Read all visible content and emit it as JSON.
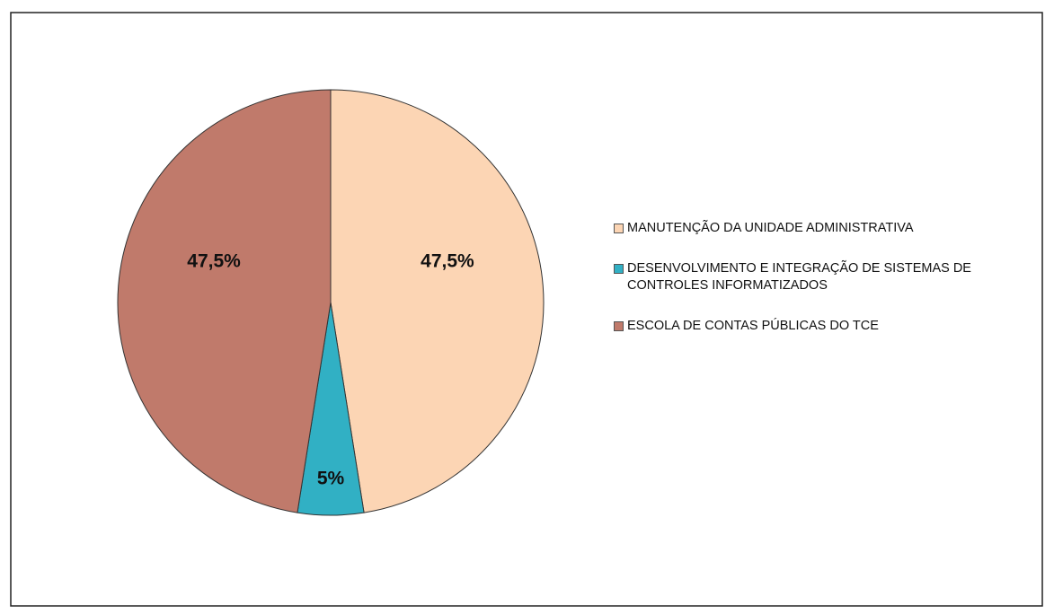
{
  "chart_data": {
    "type": "pie",
    "categories": [
      "MANUTENÇÃO DA UNIDADE ADMINISTRATIVA",
      "DESENVOLVIMENTO E INTEGRAÇÃO DE SISTEMAS DE CONTROLES INFORMATIZADOS",
      "ESCOLA DE CONTAS PÚBLICAS DO TCE"
    ],
    "values": [
      47.5,
      5,
      47.5
    ],
    "value_labels": [
      "47,5%",
      "5%",
      "47,5%"
    ],
    "colors": [
      "#fcd5b4",
      "#31b0c4",
      "#c07a6b"
    ],
    "legend": "right"
  }
}
